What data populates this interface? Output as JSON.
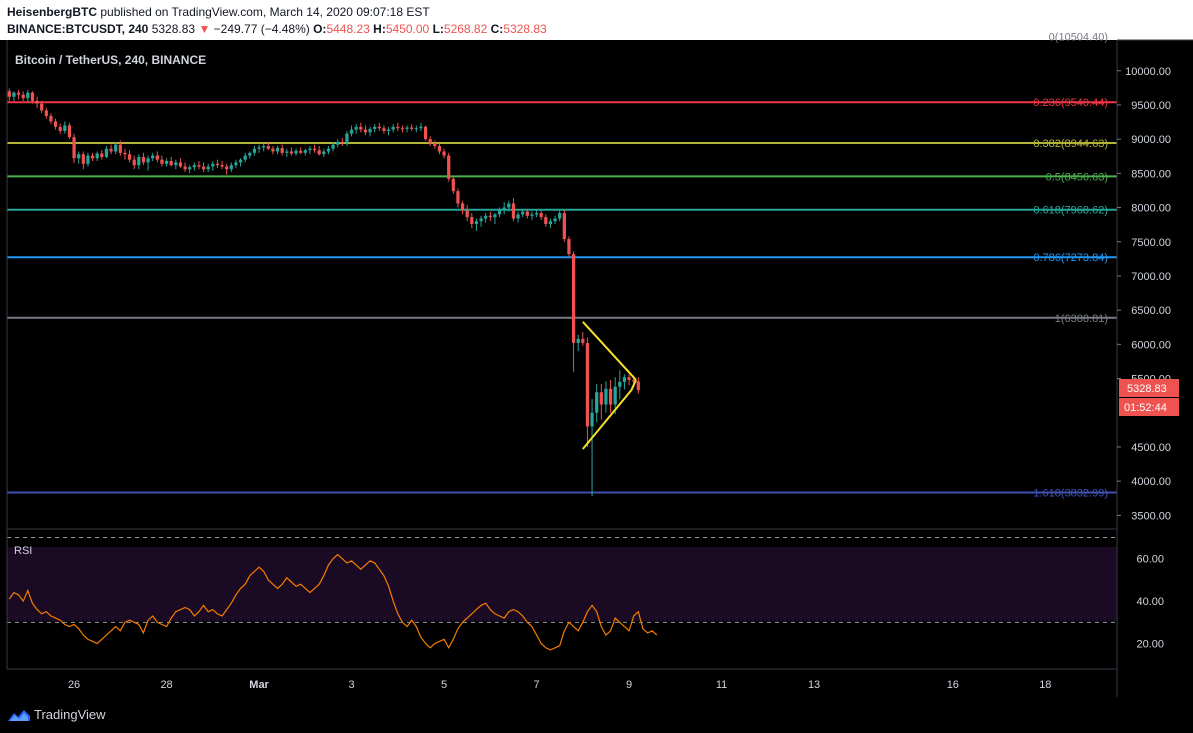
{
  "header": {
    "author": "HeisenbergBTC",
    "published_text": "published on TradingView.com, March 14, 2020 09:07:18 EST",
    "symbol": "BINANCE:BTCUSDT, 240",
    "last": "5328.83",
    "change_arrow": "▼",
    "change": "−249.77 (−4.48%)",
    "o_label": "O:",
    "o": "5448.23",
    "h_label": "H:",
    "h": "5450.00",
    "l_label": "L:",
    "l": "5268.82",
    "c_label": "C:",
    "c": "5328.83"
  },
  "footer": {
    "brand": "TradingView",
    "logo_icon": "tradingview-logo-icon"
  },
  "colors": {
    "up": "#26a69a",
    "down": "#ef5350",
    "rsi_line": "#f57c00",
    "rsi_band": "#1b0a24",
    "triangle": "#f5e12a",
    "background": "#000000"
  },
  "chart_data": {
    "type": "candlestick",
    "title": "Bitcoin / TetherUS, 240, BINANCE",
    "price_axis": {
      "ticks": [
        "10000.00",
        "9500.00",
        "9000.00",
        "8500.00",
        "8000.00",
        "7500.00",
        "7000.00",
        "6500.00",
        "6000.00",
        "5500.00",
        "4500.00",
        "4000.00",
        "3500.00"
      ],
      "ylim": [
        3300,
        10450
      ]
    },
    "price_labels": {
      "last_price": "5328.83",
      "countdown": "01:52:44"
    },
    "time_axis": {
      "ticks": [
        "26",
        "28",
        "Mar",
        "3",
        "5",
        "7",
        "9",
        "11",
        "13",
        "16",
        "18"
      ],
      "tick_index": [
        14,
        34,
        54,
        74,
        94,
        114,
        134,
        154,
        174,
        204,
        224
      ],
      "visible_bars": 240
    },
    "fib_levels": [
      {
        "ratio": 0,
        "price": 10504.4,
        "label": "0(10504.40)",
        "color": "#787b86"
      },
      {
        "ratio": 0.236,
        "price": 9540.44,
        "label": "0.236(9540.44)",
        "color": "#f23645"
      },
      {
        "ratio": 0.382,
        "price": 8944.63,
        "label": "0.382(8944.63)",
        "color": "#b2b536"
      },
      {
        "ratio": 0.5,
        "price": 8456.63,
        "label": "0.5(8456.63)",
        "color": "#4caf50"
      },
      {
        "ratio": 0.618,
        "price": 7968.62,
        "label": "0.618(7968.62)",
        "color": "#26a69a"
      },
      {
        "ratio": 0.786,
        "price": 7273.84,
        "label": "0.786(7273.84)",
        "color": "#2196f3"
      },
      {
        "ratio": 1,
        "price": 6388.81,
        "label": "1(6388.81)",
        "color": "#787b86"
      },
      {
        "ratio": 1.618,
        "price": 3832.99,
        "label": "1.618(3832.99)",
        "color": "#3f51b5"
      }
    ],
    "candles": [
      [
        9700,
        9740,
        9560,
        9620
      ],
      [
        9620,
        9700,
        9560,
        9680
      ],
      [
        9680,
        9720,
        9580,
        9650
      ],
      [
        9650,
        9700,
        9560,
        9600
      ],
      [
        9600,
        9720,
        9540,
        9680
      ],
      [
        9680,
        9700,
        9520,
        9560
      ],
      [
        9560,
        9620,
        9460,
        9520
      ],
      [
        9520,
        9560,
        9380,
        9420
      ],
      [
        9420,
        9460,
        9300,
        9340
      ],
      [
        9340,
        9380,
        9220,
        9260
      ],
      [
        9260,
        9300,
        9140,
        9180
      ],
      [
        9180,
        9230,
        9080,
        9120
      ],
      [
        9120,
        9260,
        9080,
        9200
      ],
      [
        9200,
        9240,
        9000,
        9030
      ],
      [
        9030,
        9080,
        8650,
        8720
      ],
      [
        8720,
        8820,
        8640,
        8780
      ],
      [
        8780,
        8820,
        8560,
        8640
      ],
      [
        8640,
        8800,
        8600,
        8760
      ],
      [
        8760,
        8800,
        8680,
        8720
      ],
      [
        8720,
        8820,
        8680,
        8790
      ],
      [
        8790,
        8840,
        8700,
        8740
      ],
      [
        8740,
        8900,
        8720,
        8860
      ],
      [
        8860,
        8920,
        8780,
        8820
      ],
      [
        8820,
        8960,
        8780,
        8920
      ],
      [
        8920,
        8980,
        8760,
        8800
      ],
      [
        8800,
        8860,
        8700,
        8780
      ],
      [
        8780,
        8840,
        8660,
        8700
      ],
      [
        8700,
        8760,
        8560,
        8620
      ],
      [
        8620,
        8780,
        8560,
        8740
      ],
      [
        8740,
        8800,
        8620,
        8660
      ],
      [
        8660,
        8760,
        8540,
        8720
      ],
      [
        8720,
        8800,
        8680,
        8760
      ],
      [
        8760,
        8820,
        8660,
        8700
      ],
      [
        8700,
        8760,
        8600,
        8640
      ],
      [
        8640,
        8720,
        8600,
        8680
      ],
      [
        8680,
        8740,
        8600,
        8620
      ],
      [
        8620,
        8700,
        8560,
        8660
      ],
      [
        8660,
        8720,
        8580,
        8600
      ],
      [
        8600,
        8660,
        8520,
        8560
      ],
      [
        8560,
        8620,
        8500,
        8590
      ],
      [
        8590,
        8660,
        8540,
        8620
      ],
      [
        8620,
        8680,
        8560,
        8600
      ],
      [
        8600,
        8660,
        8520,
        8560
      ],
      [
        8560,
        8640,
        8520,
        8600
      ],
      [
        8600,
        8680,
        8540,
        8640
      ],
      [
        8640,
        8700,
        8580,
        8620
      ],
      [
        8620,
        8680,
        8560,
        8600
      ],
      [
        8600,
        8640,
        8480,
        8560
      ],
      [
        8560,
        8660,
        8520,
        8620
      ],
      [
        8620,
        8700,
        8580,
        8660
      ],
      [
        8660,
        8720,
        8600,
        8700
      ],
      [
        8700,
        8800,
        8660,
        8760
      ],
      [
        8760,
        8820,
        8720,
        8800
      ],
      [
        8800,
        8900,
        8760,
        8860
      ],
      [
        8860,
        8920,
        8800,
        8880
      ],
      [
        8880,
        8940,
        8820,
        8900
      ],
      [
        8900,
        8960,
        8840,
        8860
      ],
      [
        8860,
        8900,
        8780,
        8820
      ],
      [
        8820,
        8900,
        8780,
        8870
      ],
      [
        8870,
        8920,
        8760,
        8800
      ],
      [
        8800,
        8860,
        8740,
        8820
      ],
      [
        8820,
        8880,
        8760,
        8790
      ],
      [
        8790,
        8860,
        8760,
        8830
      ],
      [
        8830,
        8880,
        8780,
        8800
      ],
      [
        8800,
        8860,
        8760,
        8840
      ],
      [
        8840,
        8900,
        8780,
        8860
      ],
      [
        8860,
        8920,
        8800,
        8840
      ],
      [
        8840,
        8900,
        8760,
        8780
      ],
      [
        8780,
        8860,
        8740,
        8820
      ],
      [
        8820,
        8900,
        8780,
        8860
      ],
      [
        8860,
        8960,
        8820,
        8920
      ],
      [
        8920,
        9000,
        8880,
        8960
      ],
      [
        8960,
        9020,
        8900,
        8940
      ],
      [
        8940,
        9120,
        8900,
        9080
      ],
      [
        9080,
        9200,
        9040,
        9140
      ],
      [
        9140,
        9220,
        9080,
        9180
      ],
      [
        9180,
        9240,
        9100,
        9140
      ],
      [
        9140,
        9200,
        9060,
        9100
      ],
      [
        9100,
        9180,
        9040,
        9150
      ],
      [
        9150,
        9220,
        9100,
        9180
      ],
      [
        9180,
        9240,
        9120,
        9160
      ],
      [
        9160,
        9200,
        9080,
        9120
      ],
      [
        9120,
        9180,
        9060,
        9140
      ],
      [
        9140,
        9220,
        9100,
        9180
      ],
      [
        9180,
        9240,
        9120,
        9160
      ],
      [
        9160,
        9200,
        9100,
        9150
      ],
      [
        9150,
        9200,
        9100,
        9170
      ],
      [
        9170,
        9220,
        9120,
        9150
      ],
      [
        9150,
        9200,
        9100,
        9160
      ],
      [
        9160,
        9240,
        9120,
        9180
      ],
      [
        9180,
        9200,
        8980,
        9000
      ],
      [
        9000,
        9040,
        8900,
        8940
      ],
      [
        8940,
        8980,
        8860,
        8900
      ],
      [
        8900,
        8940,
        8780,
        8820
      ],
      [
        8820,
        8860,
        8720,
        8760
      ],
      [
        8760,
        8800,
        8380,
        8420
      ],
      [
        8420,
        8460,
        8200,
        8240
      ],
      [
        8240,
        8280,
        8000,
        8060
      ],
      [
        8060,
        8100,
        7900,
        7960
      ],
      [
        7960,
        8040,
        7800,
        7860
      ],
      [
        7860,
        7920,
        7700,
        7760
      ],
      [
        7760,
        7840,
        7660,
        7800
      ],
      [
        7800,
        7880,
        7720,
        7840
      ],
      [
        7840,
        7920,
        7780,
        7880
      ],
      [
        7880,
        7940,
        7800,
        7860
      ],
      [
        7860,
        7920,
        7760,
        7900
      ],
      [
        7900,
        8000,
        7860,
        7960
      ],
      [
        7960,
        8080,
        7900,
        8000
      ],
      [
        8000,
        8100,
        7940,
        8060
      ],
      [
        8060,
        8140,
        7800,
        7840
      ],
      [
        7840,
        7940,
        7780,
        7900
      ],
      [
        7900,
        7980,
        7860,
        7940
      ],
      [
        7940,
        7980,
        7840,
        7880
      ],
      [
        7880,
        7940,
        7820,
        7900
      ],
      [
        7900,
        7960,
        7860,
        7920
      ],
      [
        7920,
        7960,
        7820,
        7860
      ],
      [
        7860,
        7900,
        7720,
        7760
      ],
      [
        7760,
        7840,
        7700,
        7800
      ],
      [
        7800,
        7880,
        7760,
        7840
      ],
      [
        7840,
        7960,
        7800,
        7920
      ],
      [
        7920,
        7960,
        7500,
        7540
      ],
      [
        7540,
        7580,
        7280,
        7320
      ],
      [
        7320,
        7360,
        5600,
        6020
      ],
      [
        6020,
        6140,
        5900,
        6080
      ],
      [
        6080,
        6180,
        5980,
        6020
      ],
      [
        6020,
        6100,
        4500,
        4800
      ],
      [
        4800,
        5200,
        3782,
        5000
      ],
      [
        5000,
        5420,
        4860,
        5300
      ],
      [
        5300,
        5420,
        4900,
        5120
      ],
      [
        5120,
        5460,
        5000,
        5350
      ],
      [
        5350,
        5480,
        5000,
        5120
      ],
      [
        5120,
        5520,
        4980,
        5380
      ],
      [
        5380,
        5620,
        5200,
        5450
      ],
      [
        5450,
        5560,
        5340,
        5520
      ],
      [
        5520,
        5560,
        5400,
        5480
      ],
      [
        5480,
        5540,
        5380,
        5460
      ],
      [
        5460,
        5520,
        5280,
        5330
      ]
    ],
    "triangle": {
      "upper": [
        [
          124,
          6330
        ],
        [
          135.5,
          5480
        ]
      ],
      "lower": [
        [
          124,
          4470
        ],
        [
          134.5,
          5330
        ]
      ]
    },
    "rsi": {
      "label": "RSI",
      "ticks": [
        "60.00",
        "40.00",
        "20.00"
      ],
      "overbought": 70,
      "oversold": 30,
      "ylim": [
        8,
        74
      ],
      "values": [
        41,
        44,
        43,
        40,
        45,
        39,
        36,
        34,
        35,
        33,
        32,
        31,
        29,
        28,
        29,
        27,
        24,
        22,
        21,
        20,
        22,
        24,
        26,
        28,
        26,
        30,
        31,
        30,
        29,
        25,
        31,
        33,
        30,
        29,
        28,
        32,
        35,
        36,
        37,
        36,
        33,
        35,
        38,
        35,
        36,
        34,
        33,
        36,
        39,
        43,
        46,
        48,
        52,
        54,
        56,
        54,
        50,
        48,
        46,
        48,
        51,
        49,
        47,
        48,
        46,
        44,
        46,
        48,
        52,
        57,
        60,
        62,
        60,
        58,
        59,
        57,
        55,
        57,
        59,
        58,
        55,
        52,
        47,
        40,
        34,
        30,
        28,
        31,
        28,
        23,
        20,
        18,
        20,
        21,
        22,
        18,
        22,
        27,
        30,
        32,
        34,
        36,
        38,
        39,
        36,
        34,
        33,
        32,
        35,
        36,
        35,
        33,
        30,
        28,
        24,
        20,
        18,
        17,
        18,
        19,
        26,
        30,
        28,
        26,
        30,
        35,
        38,
        35,
        28,
        24,
        26,
        32,
        30,
        28,
        26,
        33,
        35,
        27,
        25,
        26,
        24
      ]
    }
  }
}
